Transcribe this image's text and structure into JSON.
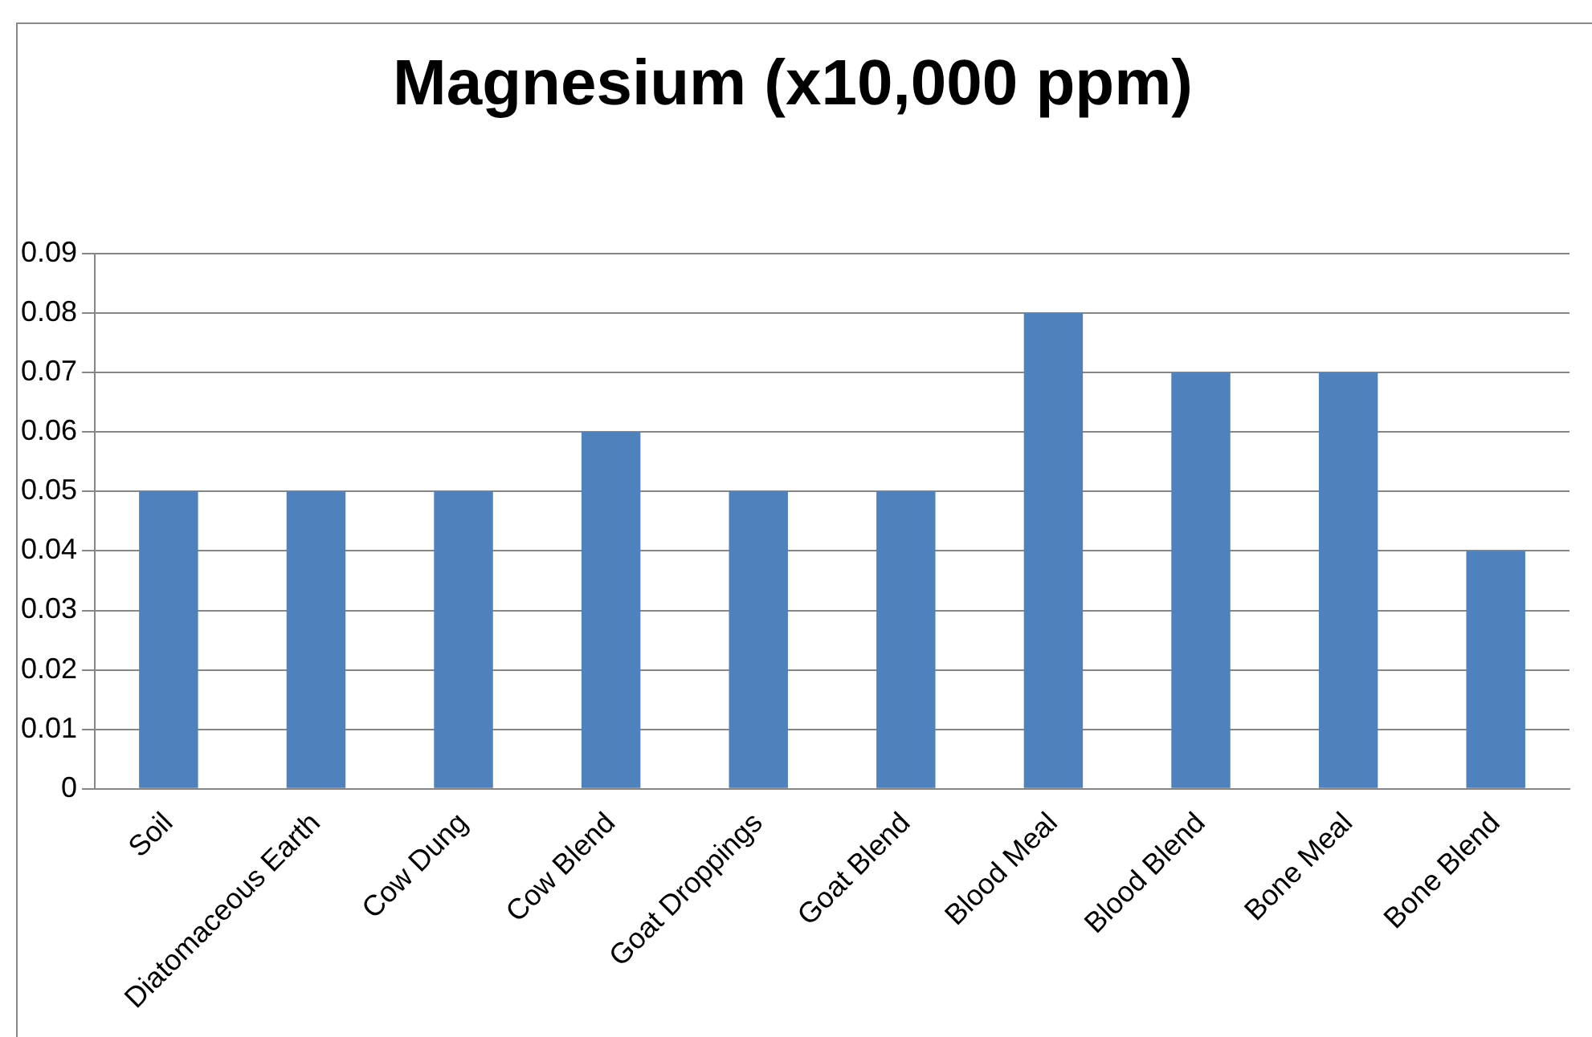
{
  "chart_data": {
    "type": "bar",
    "title": "Magnesium (x10,000 ppm)",
    "categories": [
      "Soil",
      "Diatomaceous Earth",
      "Cow Dung",
      "Cow Blend",
      "Goat Droppings",
      "Goat Blend",
      "Blood Meal",
      "Blood Blend",
      "Bone Meal",
      "Bone Blend"
    ],
    "values": [
      0.05,
      0.05,
      0.05,
      0.06,
      0.05,
      0.05,
      0.08,
      0.07,
      0.07,
      0.04
    ],
    "color": "#4f81bd",
    "ylim": [
      0,
      0.09
    ],
    "yticks": [
      0,
      0.01,
      0.02,
      0.03,
      0.04,
      0.05,
      0.06,
      0.07,
      0.08,
      0.09
    ],
    "grid": "y",
    "legend": false
  }
}
